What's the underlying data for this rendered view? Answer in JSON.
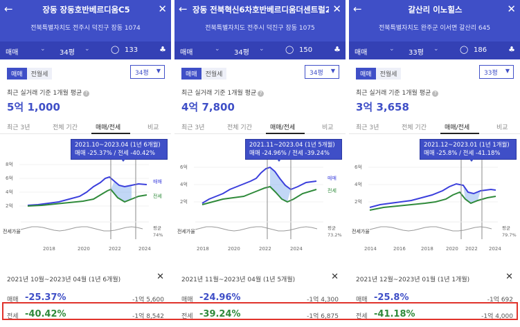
{
  "panels": [
    {
      "title": "장동 장동호반베르디움C5",
      "address": "전북특별자치도 전주시 덕진구 장동 1074",
      "filter": {
        "type": "매매",
        "size": "34평",
        "comments": "133"
      },
      "segment": {
        "sale": "매매",
        "lease": "전월세"
      },
      "size_select": "34평",
      "avg_label": "최근 실거래 기준 1개월 평균",
      "avg_price": "5억 1,000",
      "tabs": [
        "최근 3년",
        "전체 기간",
        "매매/전세",
        "비교"
      ],
      "tooltip": {
        "line1": "2021.10~2023.04 (1년 6개월)",
        "line2": "매매 -25.37%  /  전세 -40.42%"
      },
      "chart_labels": {
        "y": [
          "8억",
          "6억",
          "4억",
          "2억"
        ],
        "x": [
          "2018",
          "2020",
          "2022",
          "2024"
        ],
        "sale": "매매",
        "lease": "전세",
        "ratio_left": "전세가율",
        "ratio_right1": "평균",
        "ratio_right2": "74%"
      },
      "range": "2021년 10월~2023년 04월 (1년 6개월)",
      "sale_pct": "-25.37%",
      "sale_amt": "-1억 5,600",
      "lease_pct": "-40.42%",
      "lease_amt": "-1억 8,542",
      "row_sale_label": "매매",
      "row_lease_label": "전세"
    },
    {
      "title": "장동 전북혁신6차호반베르디움더센트럴2",
      "address": "전북특별자치도 전주시 덕진구 장동 1075",
      "filter": {
        "type": "매매",
        "size": "34평",
        "comments": "150"
      },
      "segment": {
        "sale": "매매",
        "lease": "전월세"
      },
      "size_select": "34평",
      "avg_label": "최근 실거래 기준 1개월 평균",
      "avg_price": "4억 7,800",
      "tabs": [
        "최근 3년",
        "전체 기간",
        "매매/전세",
        "비교"
      ],
      "tooltip": {
        "line1": "2021.11~2023.04 (1년 5개월)",
        "line2": "매매 -24.96%  /  전세 -39.24%"
      },
      "chart_labels": {
        "y": [
          "6억",
          "4억",
          "2억"
        ],
        "x": [
          "2018",
          "2020",
          "2022",
          "2024"
        ],
        "sale": "매매",
        "lease": "전세",
        "ratio_left": "전세가율",
        "ratio_right1": "평균",
        "ratio_right2": "73.2%"
      },
      "range": "2021년 11월~2023년 04월 (1년 5개월)",
      "sale_pct": "-24.96%",
      "sale_amt": "-1억 4,300",
      "lease_pct": "-39.24%",
      "lease_amt": "-1억 6,875",
      "row_sale_label": "매매",
      "row_lease_label": "전세"
    },
    {
      "title": "갈산리 이노힐스",
      "address": "전북특별자치도 완주군 이서면 갈산리 645",
      "filter": {
        "type": "매매",
        "size": "33평",
        "comments": "186"
      },
      "segment": {
        "sale": "매매",
        "lease": "전월세"
      },
      "size_select": "33평",
      "avg_label": "최근 실거래 기준 1개월 평균",
      "avg_price": "3억 3,658",
      "tabs": [
        "최근 3년",
        "전체 기간",
        "매매/전세",
        "비교"
      ],
      "tooltip": {
        "line1": "2021.12~2023.01 (1년 1개월)",
        "line2": "매매 -25.8%  /  전세 -41.18%"
      },
      "chart_labels": {
        "y": [
          "6억",
          "4억",
          "2억"
        ],
        "x": [
          "2014",
          "2016",
          "2018",
          "2020",
          "2022",
          "2024"
        ],
        "sale": "",
        "lease": "",
        "ratio_left": "전세가율",
        "ratio_right1": "평균",
        "ratio_right2": "79.7%"
      },
      "range": "2021년 12월~2023년 01월 (1년 1개월)",
      "sale_pct": "-25.8%",
      "sale_amt": "-1억 692",
      "lease_pct": "-41.18%",
      "lease_amt": "-1억 4,000",
      "row_sale_label": "매매",
      "row_lease_label": "전세"
    }
  ],
  "colors": {
    "accent": "#3f4fc7",
    "sale_line": "#3b3fdc",
    "lease_line": "#2f8a3a",
    "highlight": "#e0322a"
  }
}
